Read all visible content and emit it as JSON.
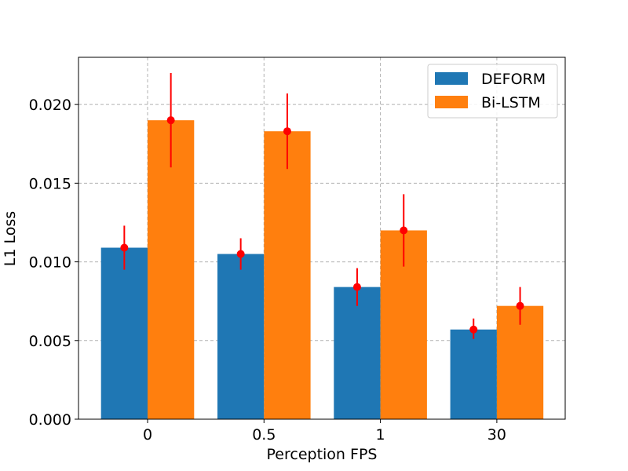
{
  "chart_data": {
    "type": "bar",
    "title": "",
    "xlabel": "Perception FPS",
    "ylabel": "L1 Loss",
    "categories": [
      "0",
      "0.5",
      "1",
      "30"
    ],
    "ylim": [
      0,
      0.023
    ],
    "yticks": [
      0.0,
      0.005,
      0.01,
      0.015,
      0.02
    ],
    "ytick_labels": [
      "0.000",
      "0.005",
      "0.010",
      "0.015",
      "0.020"
    ],
    "grid": true,
    "legend_position": "top-right",
    "series": [
      {
        "name": "DEFORM",
        "color": "#1f77b4",
        "values": [
          0.0109,
          0.0105,
          0.0084,
          0.0057
        ],
        "error_low": [
          0.0095,
          0.0095,
          0.0072,
          0.0051
        ],
        "error_high": [
          0.0123,
          0.0115,
          0.0096,
          0.0064
        ]
      },
      {
        "name": "Bi-LSTM",
        "color": "#ff7f0e",
        "values": [
          0.019,
          0.0183,
          0.012,
          0.0072
        ],
        "error_low": [
          0.016,
          0.0159,
          0.0097,
          0.006
        ],
        "error_high": [
          0.022,
          0.0207,
          0.0143,
          0.0084
        ]
      }
    ],
    "errorbar_color": "#ff0000"
  }
}
